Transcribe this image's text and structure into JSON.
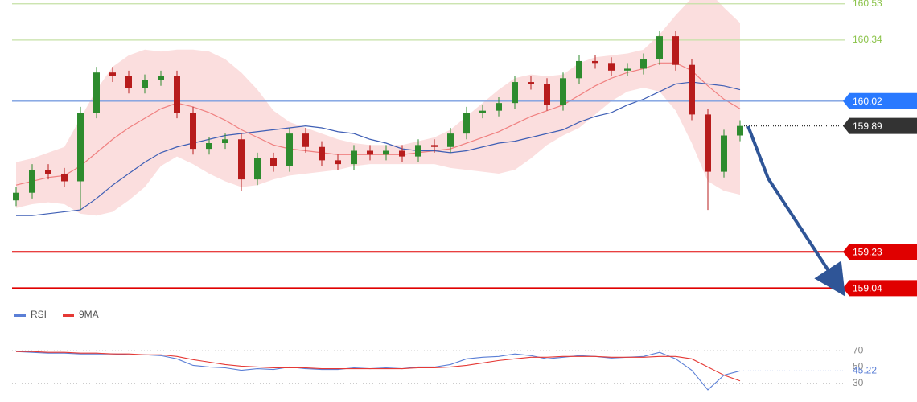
{
  "chart_data": [
    {
      "type": "candlestick",
      "ylim": [
        158.97,
        160.55
      ],
      "up_color": "#2e8b2e",
      "down_color": "#b71c1c",
      "open": [
        159.5,
        159.54,
        159.66,
        159.64,
        159.6,
        159.96,
        160.17,
        160.15,
        160.09,
        160.13,
        160.15,
        159.96,
        159.77,
        159.8,
        159.82,
        159.61,
        159.72,
        159.68,
        159.85,
        159.78,
        159.71,
        159.69,
        159.76,
        159.74,
        159.76,
        159.73,
        159.79,
        159.78,
        159.85,
        159.96,
        159.97,
        160.01,
        160.12,
        160.11,
        160.0,
        160.14,
        160.23,
        160.22,
        160.18,
        160.19,
        160.24,
        160.36,
        160.21,
        159.95,
        159.65,
        159.84
      ],
      "high": [
        159.57,
        159.69,
        159.69,
        159.67,
        159.99,
        160.2,
        160.2,
        160.18,
        160.16,
        160.18,
        160.18,
        159.99,
        159.83,
        159.85,
        159.85,
        159.75,
        159.75,
        159.88,
        159.88,
        159.81,
        159.74,
        159.79,
        159.79,
        159.79,
        159.79,
        159.82,
        159.82,
        159.88,
        159.99,
        160.0,
        160.04,
        160.15,
        160.15,
        160.14,
        160.17,
        160.26,
        160.26,
        160.25,
        160.22,
        160.27,
        160.39,
        160.39,
        160.24,
        159.98,
        159.87,
        159.92
      ],
      "low": [
        159.47,
        159.51,
        159.61,
        159.57,
        159.45,
        159.93,
        160.12,
        160.06,
        160.06,
        160.1,
        159.93,
        159.74,
        159.74,
        159.77,
        159.55,
        159.58,
        159.65,
        159.65,
        159.75,
        159.68,
        159.66,
        159.66,
        159.71,
        159.71,
        159.7,
        159.7,
        159.75,
        159.75,
        159.82,
        159.93,
        159.94,
        159.98,
        160.08,
        159.97,
        159.97,
        160.11,
        160.19,
        160.15,
        160.15,
        160.16,
        160.21,
        160.18,
        159.92,
        159.45,
        159.62,
        159.81
      ],
      "close": [
        159.54,
        159.66,
        159.64,
        159.6,
        159.96,
        160.17,
        160.15,
        160.09,
        160.13,
        160.15,
        159.96,
        159.77,
        159.8,
        159.82,
        159.61,
        159.72,
        159.68,
        159.85,
        159.78,
        159.71,
        159.69,
        159.76,
        159.74,
        159.76,
        159.73,
        159.79,
        159.78,
        159.85,
        159.96,
        159.97,
        160.01,
        160.12,
        160.11,
        160.0,
        160.14,
        160.23,
        160.22,
        160.18,
        160.19,
        160.24,
        160.36,
        160.21,
        159.95,
        159.65,
        159.84,
        159.89
      ],
      "band": {
        "color": "#f8c8c8",
        "upper": [
          159.7,
          159.72,
          159.75,
          159.78,
          159.93,
          160.08,
          160.2,
          160.26,
          160.29,
          160.28,
          160.29,
          160.29,
          160.28,
          160.24,
          160.17,
          160.08,
          159.97,
          159.91,
          159.88,
          159.85,
          159.82,
          159.8,
          159.79,
          159.79,
          159.79,
          159.81,
          159.83,
          159.87,
          159.94,
          160.01,
          160.08,
          160.14,
          160.16,
          160.15,
          160.16,
          160.22,
          160.25,
          160.26,
          160.27,
          160.29,
          160.37,
          160.47,
          160.56,
          160.6,
          160.51,
          160.43
        ],
        "lower": [
          159.46,
          159.48,
          159.49,
          159.48,
          159.43,
          159.42,
          159.44,
          159.5,
          159.57,
          159.68,
          159.73,
          159.69,
          159.64,
          159.6,
          159.57,
          159.58,
          159.61,
          159.63,
          159.64,
          159.65,
          159.66,
          159.68,
          159.69,
          159.69,
          159.69,
          159.69,
          159.69,
          159.67,
          159.66,
          159.65,
          159.64,
          159.66,
          159.72,
          159.79,
          159.84,
          159.88,
          159.95,
          160.02,
          160.07,
          160.09,
          160.07,
          159.97,
          159.8,
          159.6,
          159.55,
          159.53
        ]
      },
      "lines": [
        {
          "color": "#f08080",
          "values": [
            159.58,
            159.6,
            159.62,
            159.63,
            159.68,
            159.75,
            159.82,
            159.88,
            159.93,
            159.98,
            160.01,
            159.99,
            159.96,
            159.92,
            159.87,
            159.83,
            159.79,
            159.77,
            159.76,
            159.75,
            159.74,
            159.74,
            159.74,
            159.74,
            159.74,
            159.75,
            159.76,
            159.77,
            159.8,
            159.83,
            159.86,
            159.9,
            159.94,
            159.97,
            160.0,
            160.05,
            160.1,
            160.14,
            160.17,
            160.19,
            160.22,
            160.22,
            160.18,
            160.1,
            160.03,
            159.98
          ]
        },
        {
          "color": "#3f5fb5",
          "values": [
            159.42,
            159.42,
            159.43,
            159.44,
            159.45,
            159.51,
            159.58,
            159.64,
            159.7,
            159.75,
            159.78,
            159.8,
            159.82,
            159.84,
            159.85,
            159.86,
            159.87,
            159.88,
            159.89,
            159.88,
            159.86,
            159.85,
            159.82,
            159.8,
            159.77,
            159.76,
            159.76,
            159.75,
            159.76,
            159.78,
            159.8,
            159.81,
            159.83,
            159.85,
            159.87,
            159.91,
            159.94,
            159.96,
            160.0,
            160.03,
            160.07,
            160.11,
            160.12,
            160.11,
            160.1,
            160.08
          ]
        }
      ],
      "levels": [
        {
          "value": 160.53,
          "color": "#8bc34a",
          "style": "text"
        },
        {
          "value": 160.34,
          "color": "#8bc34a",
          "style": "text"
        },
        {
          "value": 160.02,
          "color": "#2979ff",
          "style": "box"
        },
        {
          "value": 159.89,
          "color": "#333333",
          "style": "dotted"
        },
        {
          "value": 159.23,
          "color": "#e00000",
          "style": "box"
        },
        {
          "value": 159.04,
          "color": "#e00000",
          "style": "box"
        }
      ]
    },
    {
      "type": "line",
      "ylim": [
        17,
        81
      ],
      "yticks": [
        30,
        50,
        70
      ],
      "series": [
        {
          "name": "RSI",
          "color": "#5b7fd6",
          "values": [
            69,
            68,
            67,
            67,
            66,
            66,
            66,
            65,
            65,
            64,
            60,
            52,
            50,
            49,
            46,
            48,
            47,
            50,
            48,
            47,
            47,
            49,
            48,
            49,
            48,
            50,
            50,
            53,
            60,
            62,
            63,
            66,
            64,
            60,
            62,
            64,
            63,
            61,
            62,
            63,
            68,
            60,
            46,
            22,
            40,
            45.22
          ]
        },
        {
          "name": "9MA",
          "color": "#e53935",
          "values": [
            69,
            69,
            68,
            68,
            67,
            67,
            66,
            66,
            65,
            65,
            63,
            59,
            56,
            53,
            51,
            50,
            49,
            49,
            49,
            48,
            48,
            48,
            48,
            48,
            48,
            49,
            49,
            50,
            52,
            55,
            58,
            60,
            62,
            62,
            63,
            63,
            63,
            62,
            62,
            62,
            63,
            63,
            60,
            50,
            40,
            33
          ]
        }
      ]
    }
  ]
}
